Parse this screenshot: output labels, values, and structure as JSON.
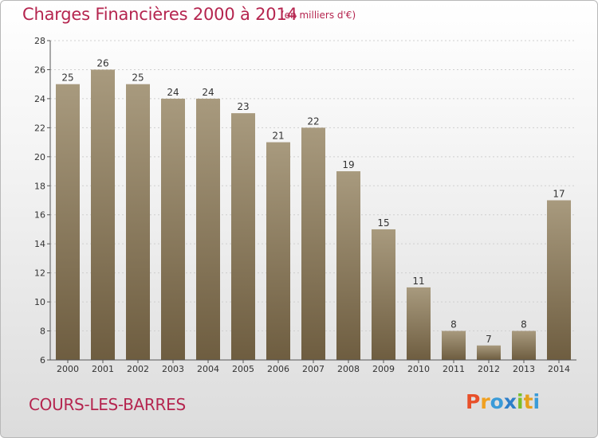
{
  "header": {
    "title": "Charges Financières 2000 à 2014",
    "subtitle": "(en milliers d'€)"
  },
  "footer": {
    "commune": "COURS-LES-BARRES",
    "logo_letters": [
      "P",
      "r",
      "o",
      "x",
      "i",
      "t",
      "i"
    ],
    "logo_colors": [
      "#e8502a",
      "#f0a020",
      "#3a9bd8",
      "#2e7fc9",
      "#7bbf2a",
      "#e5a11c",
      "#3a9bd8"
    ]
  },
  "colors": {
    "title": "#b5254f",
    "bar_top": "#a89a7e",
    "bar_bottom": "#6e5d40"
  },
  "chart_data": {
    "type": "bar",
    "title": "Charges Financières 2000 à 2014",
    "subtitle": "(en milliers d'€)",
    "categories": [
      "2000",
      "2001",
      "2002",
      "2003",
      "2004",
      "2005",
      "2006",
      "2007",
      "2008",
      "2009",
      "2010",
      "2011",
      "2012",
      "2013",
      "2014"
    ],
    "values": [
      25,
      26,
      25,
      24,
      24,
      23,
      21,
      22,
      19,
      15,
      11,
      8,
      7,
      8,
      17
    ],
    "ylim": [
      6,
      28
    ],
    "yticks": [
      6,
      8,
      10,
      12,
      14,
      16,
      18,
      20,
      22,
      24,
      26,
      28
    ],
    "grid": true,
    "legend": "none"
  }
}
